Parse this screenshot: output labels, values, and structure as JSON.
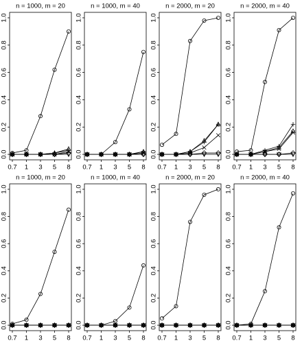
{
  "chart_data": [
    {
      "type": "line",
      "title": "n = 1000, m = 20",
      "categories": [
        "0.7",
        "1",
        "3",
        "5",
        "8"
      ],
      "ylim": [
        -0.04,
        1.04
      ],
      "yticks": [
        {
          "value": 0,
          "label": "0.0"
        },
        0.2,
        0.4,
        0.6,
        0.8,
        {
          "value": 1,
          "label": "1.0"
        }
      ],
      "series": [
        {
          "marker": "circle",
          "color": "#000000",
          "values": [
            0.01,
            0.03,
            0.28,
            0.62,
            0.9
          ]
        },
        {
          "marker": "triangle",
          "color": "#000000",
          "values": [
            0,
            0,
            0,
            0.01,
            0.04
          ]
        },
        {
          "marker": "plus",
          "color": "#000000",
          "values": [
            0,
            0,
            0,
            0.01,
            0.03
          ]
        },
        {
          "marker": "cross",
          "color": "#000000",
          "values": [
            0,
            0,
            0,
            0,
            0.02
          ]
        },
        {
          "marker": "diamond",
          "color": "#000000",
          "values": [
            0,
            0,
            0,
            0,
            0.01
          ]
        },
        {
          "marker": "down-triangle",
          "color": "#000000",
          "values": [
            0,
            0,
            0,
            0,
            0
          ]
        }
      ]
    },
    {
      "type": "line",
      "title": "n = 1000, m = 40",
      "categories": [
        "0.7",
        "1",
        "3",
        "5",
        "8"
      ],
      "ylim": [
        -0.04,
        1.04
      ],
      "yticks": [
        {
          "value": 0,
          "label": "0.0"
        },
        0.2,
        0.4,
        0.6,
        0.8,
        {
          "value": 1,
          "label": "1.0"
        }
      ],
      "series": [
        {
          "marker": "circle",
          "color": "#000000",
          "values": [
            0,
            0,
            0.09,
            0.33,
            0.75
          ]
        },
        {
          "marker": "triangle",
          "color": "#000000",
          "values": [
            0,
            0,
            0,
            0,
            0.02
          ]
        },
        {
          "marker": "plus",
          "color": "#000000",
          "values": [
            0,
            0,
            0,
            0,
            0.02
          ]
        },
        {
          "marker": "cross",
          "color": "#000000",
          "values": [
            0,
            0,
            0,
            0,
            0.01
          ]
        },
        {
          "marker": "diamond",
          "color": "#000000",
          "values": [
            0,
            0,
            0,
            0,
            0
          ]
        },
        {
          "marker": "down-triangle",
          "color": "#000000",
          "values": [
            0,
            0,
            0,
            0,
            0
          ]
        }
      ]
    },
    {
      "type": "line",
      "title": "n = 2000, m = 20",
      "categories": [
        "0.7",
        "1",
        "3",
        "5",
        "8"
      ],
      "ylim": [
        -0.04,
        1.04
      ],
      "yticks": [
        {
          "value": 0,
          "label": "0.0"
        },
        0.2,
        0.4,
        0.6,
        0.8,
        {
          "value": 1,
          "label": "1.0"
        }
      ],
      "series": [
        {
          "marker": "circle",
          "color": "#000000",
          "values": [
            0.07,
            0.15,
            0.83,
            0.98,
            1.0
          ]
        },
        {
          "marker": "triangle",
          "color": "#000000",
          "values": [
            0,
            0,
            0.02,
            0.1,
            0.22
          ]
        },
        {
          "marker": "plus",
          "color": "#000000",
          "values": [
            0,
            0,
            0.02,
            0.09,
            0.22
          ]
        },
        {
          "marker": "cross",
          "color": "#000000",
          "values": [
            0,
            0,
            0.01,
            0.05,
            0.14
          ]
        },
        {
          "marker": "diamond",
          "color": "#000000",
          "values": [
            0,
            0,
            0,
            0.01,
            0.01
          ]
        },
        {
          "marker": "down-triangle",
          "color": "#000000",
          "values": [
            0,
            0,
            0,
            0,
            0
          ]
        }
      ]
    },
    {
      "type": "line",
      "title": "n = 2000, m = 40",
      "categories": [
        "0.7",
        "1",
        "3",
        "5",
        "8"
      ],
      "ylim": [
        -0.04,
        1.04
      ],
      "yticks": [
        {
          "value": 0,
          "label": "0.0"
        },
        0.2,
        0.4,
        0.6,
        0.8,
        {
          "value": 1,
          "label": "1.0"
        }
      ],
      "series": [
        {
          "marker": "circle",
          "color": "#000000",
          "values": [
            0.02,
            0.03,
            0.53,
            0.91,
            1.0
          ]
        },
        {
          "marker": "triangle",
          "color": "#000000",
          "values": [
            0,
            0,
            0.02,
            0.05,
            0.17
          ]
        },
        {
          "marker": "plus",
          "color": "#000000",
          "values": [
            0,
            0,
            0.03,
            0.06,
            0.22
          ]
        },
        {
          "marker": "cross",
          "color": "#000000",
          "values": [
            0,
            0,
            0.02,
            0.04,
            0.16
          ]
        },
        {
          "marker": "diamond",
          "color": "#000000",
          "values": [
            0,
            0,
            0,
            0,
            0.01
          ]
        },
        {
          "marker": "down-triangle",
          "color": "#000000",
          "values": [
            0,
            0,
            0,
            0,
            0
          ]
        }
      ]
    },
    {
      "type": "line",
      "title": "n = 1000, m = 20",
      "categories": [
        "0.7",
        "1",
        "3",
        "5",
        "8"
      ],
      "ylim": [
        -0.04,
        1.04
      ],
      "yticks": [
        {
          "value": 0,
          "label": "0.0"
        },
        0.2,
        0.4,
        0.6,
        0.8,
        {
          "value": 1,
          "label": "1.0"
        }
      ],
      "series": [
        {
          "marker": "circle",
          "color": "#000000",
          "values": [
            0.01,
            0.04,
            0.23,
            0.54,
            0.85
          ]
        },
        {
          "marker": "triangle",
          "color": "#000000",
          "values": [
            0,
            0,
            0,
            0,
            0
          ]
        },
        {
          "marker": "plus",
          "color": "#000000",
          "values": [
            0,
            0,
            0,
            0,
            0
          ]
        },
        {
          "marker": "cross",
          "color": "#000000",
          "values": [
            0,
            0,
            0,
            0,
            0
          ]
        },
        {
          "marker": "diamond",
          "color": "#000000",
          "values": [
            0,
            0,
            0,
            0,
            0
          ]
        },
        {
          "marker": "down-triangle",
          "color": "#000000",
          "values": [
            0,
            0,
            0,
            0,
            0
          ]
        }
      ]
    },
    {
      "type": "line",
      "title": "n = 1000, m = 40",
      "categories": [
        "0.7",
        "1",
        "3",
        "5",
        "8"
      ],
      "ylim": [
        -0.04,
        1.04
      ],
      "yticks": [
        {
          "value": 0,
          "label": "0.0"
        },
        0.2,
        0.4,
        0.6,
        0.8,
        {
          "value": 1,
          "label": "1.0"
        }
      ],
      "series": [
        {
          "marker": "circle",
          "color": "#000000",
          "values": [
            0,
            0,
            0.03,
            0.13,
            0.44
          ]
        },
        {
          "marker": "triangle",
          "color": "#000000",
          "values": [
            0,
            0,
            0,
            0,
            0
          ]
        },
        {
          "marker": "plus",
          "color": "#000000",
          "values": [
            0,
            0,
            0,
            0,
            0
          ]
        },
        {
          "marker": "cross",
          "color": "#000000",
          "values": [
            0,
            0,
            0,
            0,
            0
          ]
        },
        {
          "marker": "diamond",
          "color": "#000000",
          "values": [
            0,
            0,
            0,
            0,
            0
          ]
        },
        {
          "marker": "down-triangle",
          "color": "#000000",
          "values": [
            0,
            0,
            0,
            0,
            0
          ]
        }
      ]
    },
    {
      "type": "line",
      "title": "n = 2000, m = 20",
      "categories": [
        "0.7",
        "1",
        "3",
        "5",
        "8"
      ],
      "ylim": [
        -0.04,
        1.04
      ],
      "yticks": [
        {
          "value": 0,
          "label": "0.0"
        },
        0.2,
        0.4,
        0.6,
        0.8,
        {
          "value": 1,
          "label": "1.0"
        }
      ],
      "series": [
        {
          "marker": "circle",
          "color": "#000000",
          "values": [
            0.05,
            0.14,
            0.76,
            0.96,
            1.0
          ]
        },
        {
          "marker": "triangle",
          "color": "#000000",
          "values": [
            0,
            0,
            0,
            0,
            0
          ]
        },
        {
          "marker": "plus",
          "color": "#000000",
          "values": [
            0,
            0,
            0,
            0,
            0
          ]
        },
        {
          "marker": "cross",
          "color": "#000000",
          "values": [
            0,
            0,
            0,
            0,
            0
          ]
        },
        {
          "marker": "diamond",
          "color": "#000000",
          "values": [
            0,
            0,
            0,
            0,
            0
          ]
        },
        {
          "marker": "down-triangle",
          "color": "#000000",
          "values": [
            0,
            0,
            0,
            0,
            0
          ]
        }
      ]
    },
    {
      "type": "line",
      "title": "n = 2000, m = 40",
      "categories": [
        "0.7",
        "1",
        "3",
        "5",
        "8"
      ],
      "ylim": [
        -0.04,
        1.04
      ],
      "yticks": [
        {
          "value": 0,
          "label": "0.0"
        },
        0.2,
        0.4,
        0.6,
        0.8,
        {
          "value": 1,
          "label": "1.0"
        }
      ],
      "series": [
        {
          "marker": "circle",
          "color": "#000000",
          "values": [
            0,
            0.01,
            0.25,
            0.72,
            0.97
          ]
        },
        {
          "marker": "triangle",
          "color": "#000000",
          "values": [
            0,
            0,
            0,
            0,
            0
          ]
        },
        {
          "marker": "plus",
          "color": "#000000",
          "values": [
            0,
            0,
            0,
            0,
            0
          ]
        },
        {
          "marker": "cross",
          "color": "#000000",
          "values": [
            0,
            0,
            0,
            0,
            0
          ]
        },
        {
          "marker": "diamond",
          "color": "#000000",
          "values": [
            0,
            0,
            0,
            0,
            0
          ]
        },
        {
          "marker": "down-triangle",
          "color": "#000000",
          "values": [
            0,
            0,
            0,
            0,
            0
          ]
        }
      ]
    }
  ]
}
